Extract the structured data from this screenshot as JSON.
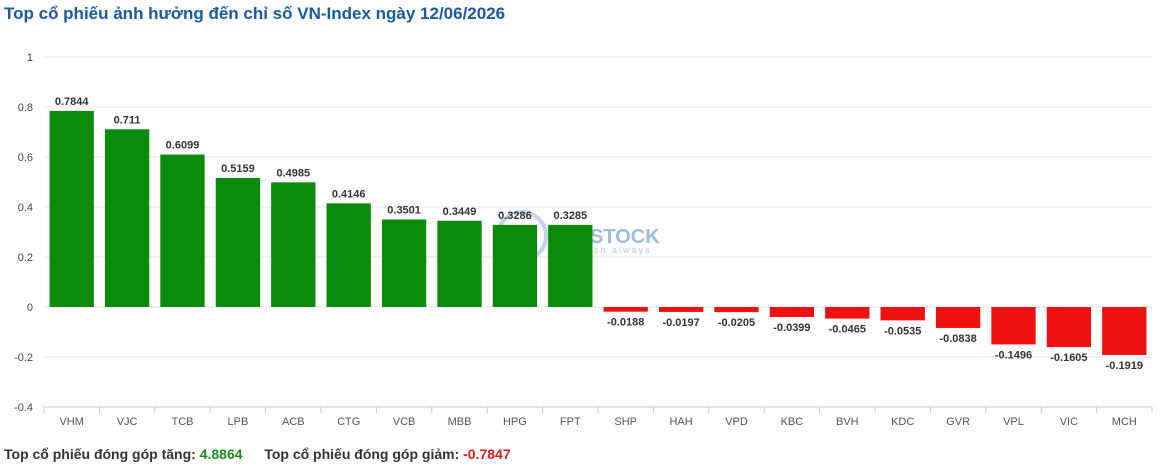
{
  "title": "Top cổ phiếu ảnh hưởng đến chỉ số VN-Index ngày 12/06/2026",
  "footer": {
    "up_label": "Top cổ phiếu đóng góp tăng:",
    "up_value": "4.8864",
    "down_label": "Top cổ phiếu đóng góp giảm:",
    "down_value": "-0.7847"
  },
  "watermark": {
    "text": "STOCK",
    "subtext": "sh always"
  },
  "colors": {
    "positive": "#0b8a0b",
    "negative": "#ee1111",
    "title": "#1a5aa0"
  },
  "chart_data": {
    "type": "bar",
    "categories": [
      "VHM",
      "VJC",
      "TCB",
      "LPB",
      "ACB",
      "CTG",
      "VCB",
      "MBB",
      "HPG",
      "FPT",
      "SHP",
      "HAH",
      "VPD",
      "KBC",
      "BVH",
      "KDC",
      "GVR",
      "VPL",
      "VIC",
      "MCH"
    ],
    "values": [
      0.7844,
      0.711,
      0.6099,
      0.5159,
      0.4985,
      0.4146,
      0.3501,
      0.3449,
      0.3286,
      0.3285,
      -0.0188,
      -0.0197,
      -0.0205,
      -0.0399,
      -0.0465,
      -0.0535,
      -0.0838,
      -0.1496,
      -0.1605,
      -0.1919
    ],
    "labels": [
      "0.7844",
      "0.711",
      "0.6099",
      "0.5159",
      "0.4985",
      "0.4146",
      "0.3501",
      "0.3449",
      "0.3286",
      "0.3285",
      "-0.0188",
      "-0.0197",
      "-0.0205",
      "-0.0399",
      "-0.0465",
      "-0.0535",
      "-0.0838",
      "-0.1496",
      "-0.1605",
      "-0.1919"
    ],
    "yticks": [
      1,
      0.8,
      0.6,
      0.4,
      0.2,
      0,
      -0.2,
      -0.4
    ],
    "ytick_labels": [
      "1",
      "0.8",
      "0.6",
      "0.4",
      "0.2",
      "0",
      "-0.2",
      "-0.4"
    ],
    "ylim": [
      -0.4,
      1
    ],
    "grid": true,
    "legend": "none"
  }
}
